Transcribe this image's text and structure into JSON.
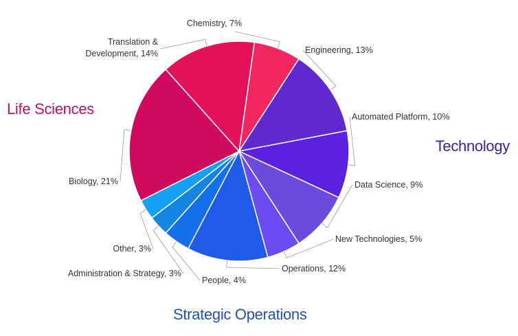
{
  "chart_data": {
    "type": "pie",
    "title": "",
    "slices": [
      {
        "label": "Chemistry, 7%",
        "value": 7,
        "color": "#f2275f"
      },
      {
        "label": "Engineering, 13%",
        "value": 13,
        "color": "#5e2ad0"
      },
      {
        "label": "Automated Platform, 10%",
        "value": 10,
        "color": "#5a22e0"
      },
      {
        "label": "Data Science, 9%",
        "value": 9,
        "color": "#6a4bdc"
      },
      {
        "label": "New Technologies, 5%",
        "value": 5,
        "color": "#6a4cf2"
      },
      {
        "label": "Operations, 12%",
        "value": 12,
        "color": "#1f5be8"
      },
      {
        "label": "People, 4%",
        "value": 4,
        "color": "#1470ea"
      },
      {
        "label": "Administration & Strategy, 3%",
        "value": 3,
        "color": "#1585e3"
      },
      {
        "label": "Other, 3%",
        "value": 3,
        "color": "#14a1f5"
      },
      {
        "label": "Biology, 21%",
        "value": 21,
        "color": "#d10a5f"
      },
      {
        "label": "Translation & Development, 14%",
        "value": 14,
        "color": "#e3105a"
      }
    ],
    "groups": [
      {
        "label": "Life Sciences",
        "color": "#c2124e"
      },
      {
        "label": "Technology",
        "color": "#3a1fa8"
      },
      {
        "label": "Strategic Operations",
        "color": "#1f4fbf"
      }
    ]
  }
}
